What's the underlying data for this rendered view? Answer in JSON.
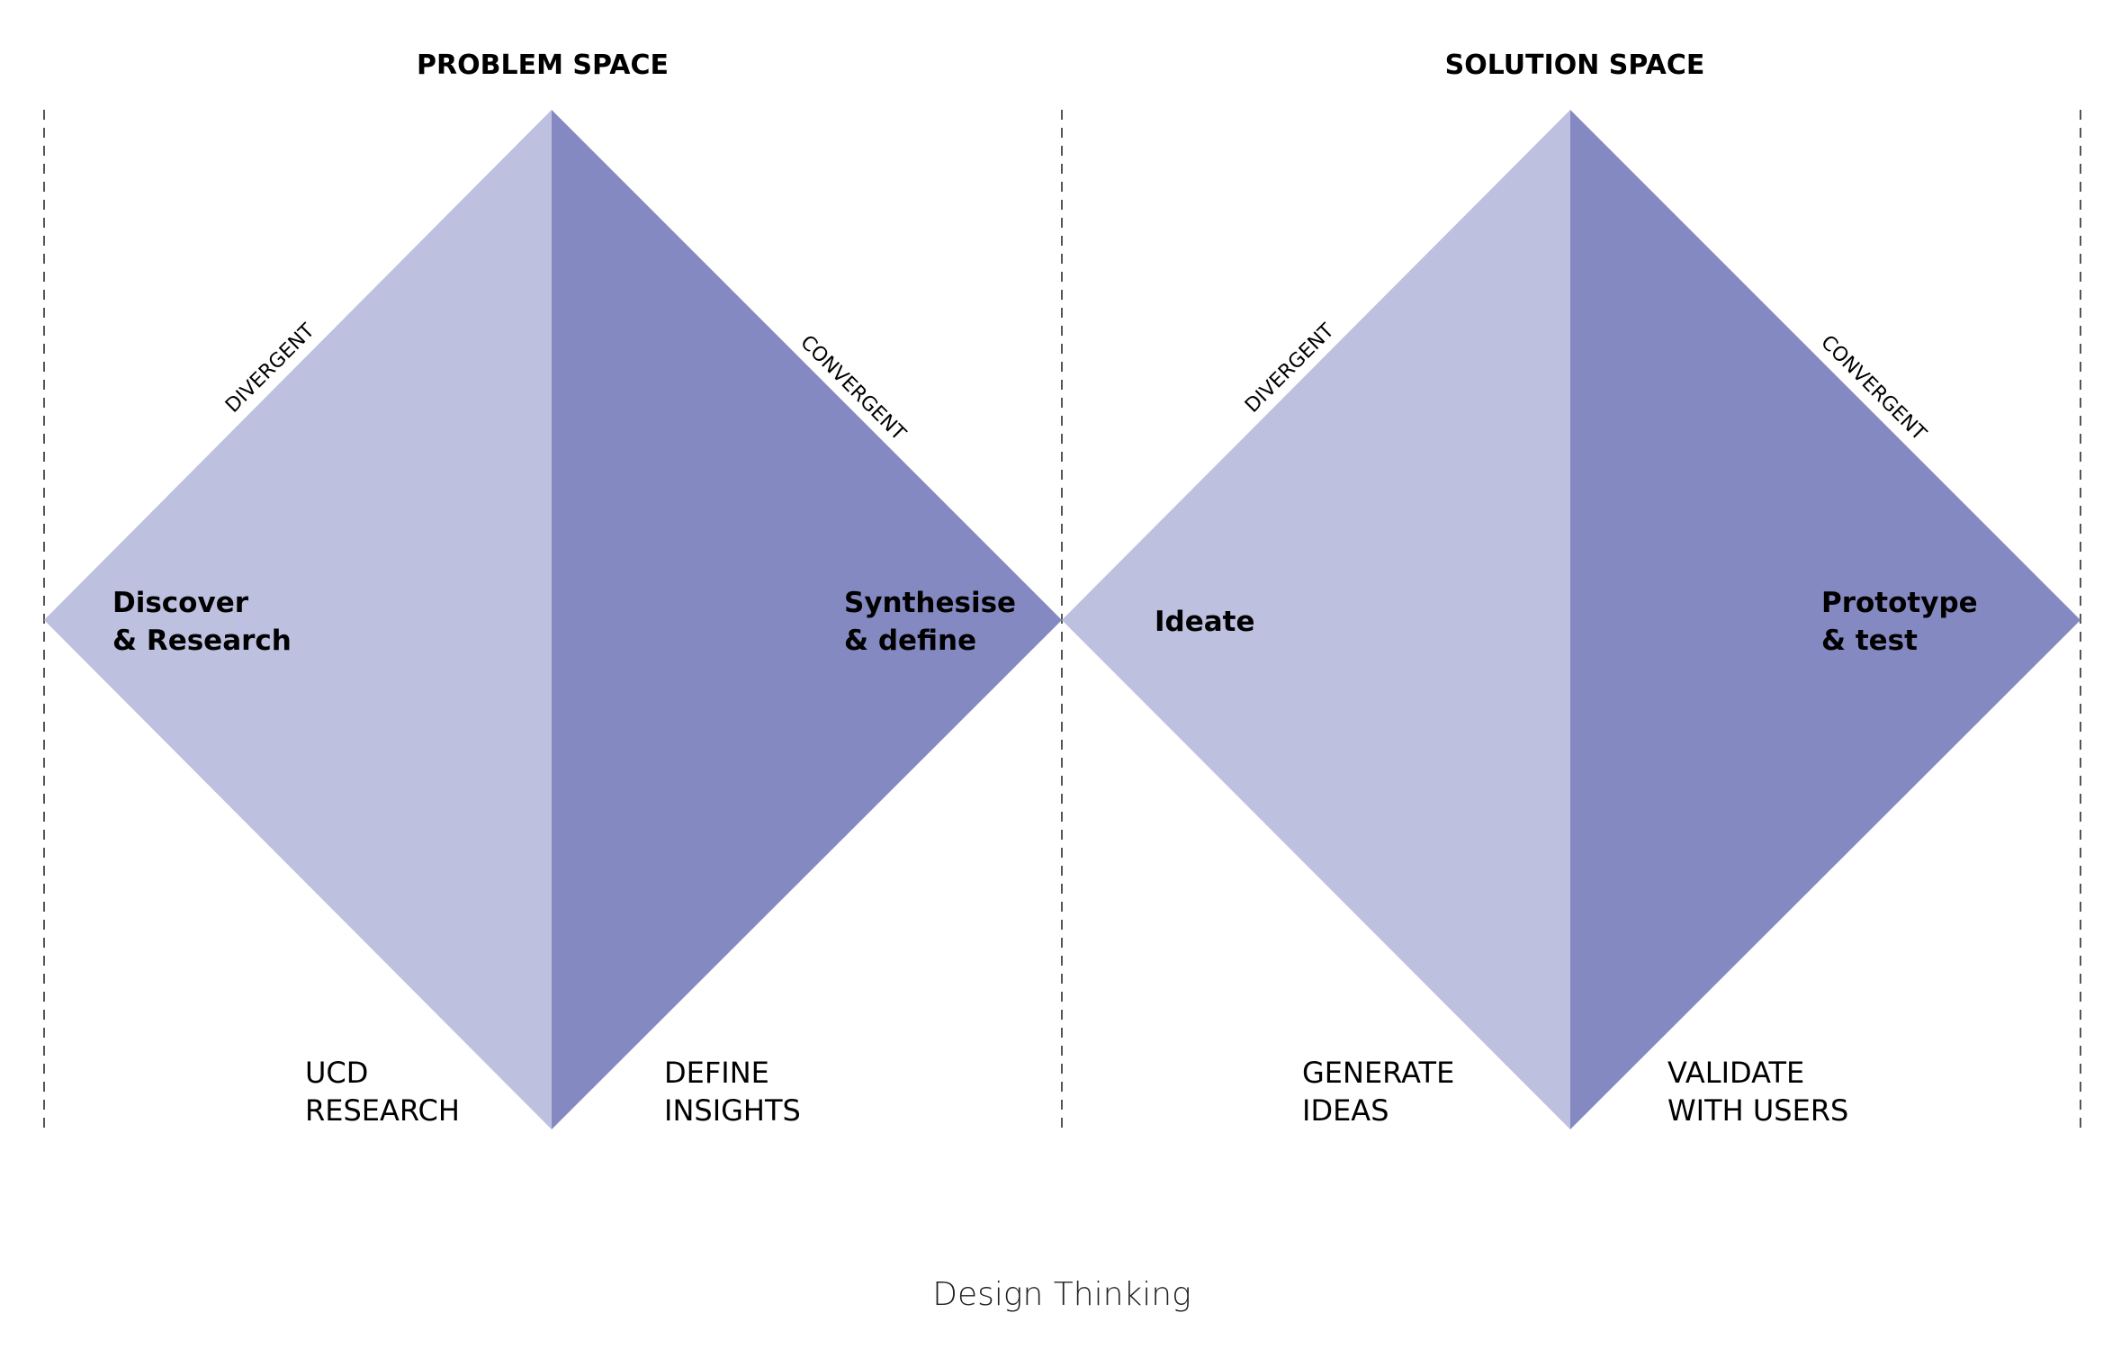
{
  "colors": {
    "divergent_fill": "#bdc0df",
    "convergent_fill": "#8589c1",
    "divider": "#555555",
    "text": "#000000"
  },
  "spaces": [
    {
      "title": "PROBLEM SPACE",
      "divergent_phase": [
        "Discover",
        "& Research"
      ],
      "convergent_phase": [
        "Synthesise",
        "& define"
      ],
      "divergent_mode": "DIVERGENT",
      "convergent_mode": "CONVERGENT",
      "divergent_activity": [
        "UCD",
        "RESEARCH"
      ],
      "convergent_activity": [
        "DEFINE",
        "INSIGHTS"
      ]
    },
    {
      "title": "SOLUTION SPACE",
      "divergent_phase": [
        "Ideate"
      ],
      "convergent_phase": [
        "Prototype",
        "& test"
      ],
      "divergent_mode": "DIVERGENT",
      "convergent_mode": "CONVERGENT",
      "divergent_activity": [
        "GENERATE",
        "IDEAS"
      ],
      "convergent_activity": [
        "VALIDATE",
        "WITH USERS"
      ]
    }
  ],
  "caption": "Design Thinking"
}
